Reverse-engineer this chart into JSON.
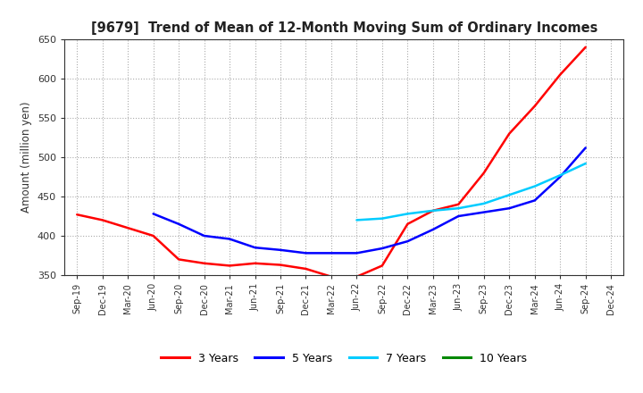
{
  "title": "[9679]  Trend of Mean of 12-Month Moving Sum of Ordinary Incomes",
  "ylabel": "Amount (million yen)",
  "ylim": [
    350,
    650
  ],
  "yticks": [
    350,
    400,
    450,
    500,
    550,
    600,
    650
  ],
  "background_color": "#ffffff",
  "grid_color": "#aaaaaa",
  "x_labels": [
    "Sep-19",
    "Dec-19",
    "Mar-20",
    "Jun-20",
    "Sep-20",
    "Dec-20",
    "Mar-21",
    "Jun-21",
    "Sep-21",
    "Dec-21",
    "Mar-22",
    "Jun-22",
    "Sep-22",
    "Dec-22",
    "Mar-23",
    "Jun-23",
    "Sep-23",
    "Dec-23",
    "Mar-24",
    "Jun-24",
    "Sep-24",
    "Dec-24"
  ],
  "series": {
    "3 Years": {
      "color": "#ff0000",
      "data_x": [
        0,
        1,
        2,
        3,
        4,
        5,
        6,
        7,
        8,
        9,
        10,
        11,
        12,
        13,
        14,
        15,
        16,
        17,
        18,
        19,
        20
      ],
      "data_y": [
        427,
        420,
        410,
        400,
        370,
        365,
        362,
        365,
        363,
        358,
        348,
        348,
        362,
        415,
        432,
        440,
        480,
        530,
        565,
        605,
        640
      ]
    },
    "5 Years": {
      "color": "#0000ff",
      "data_x": [
        3,
        4,
        5,
        6,
        7,
        8,
        9,
        10,
        11,
        12,
        13,
        14,
        15,
        16,
        17,
        18,
        19,
        20
      ],
      "data_y": [
        428,
        415,
        400,
        396,
        385,
        382,
        378,
        378,
        378,
        384,
        393,
        408,
        425,
        430,
        435,
        445,
        475,
        512
      ]
    },
    "7 Years": {
      "color": "#00ccff",
      "data_x": [
        11,
        12,
        13,
        14,
        15,
        16,
        17,
        18,
        19,
        20
      ],
      "data_y": [
        420,
        422,
        428,
        432,
        435,
        441,
        452,
        463,
        477,
        492
      ]
    },
    "10 Years": {
      "color": "#008800",
      "data_x": [],
      "data_y": []
    }
  },
  "legend_entries": [
    "3 Years",
    "5 Years",
    "7 Years",
    "10 Years"
  ],
  "legend_colors": [
    "#ff0000",
    "#0000ff",
    "#00ccff",
    "#008800"
  ],
  "linewidth": 1.8
}
